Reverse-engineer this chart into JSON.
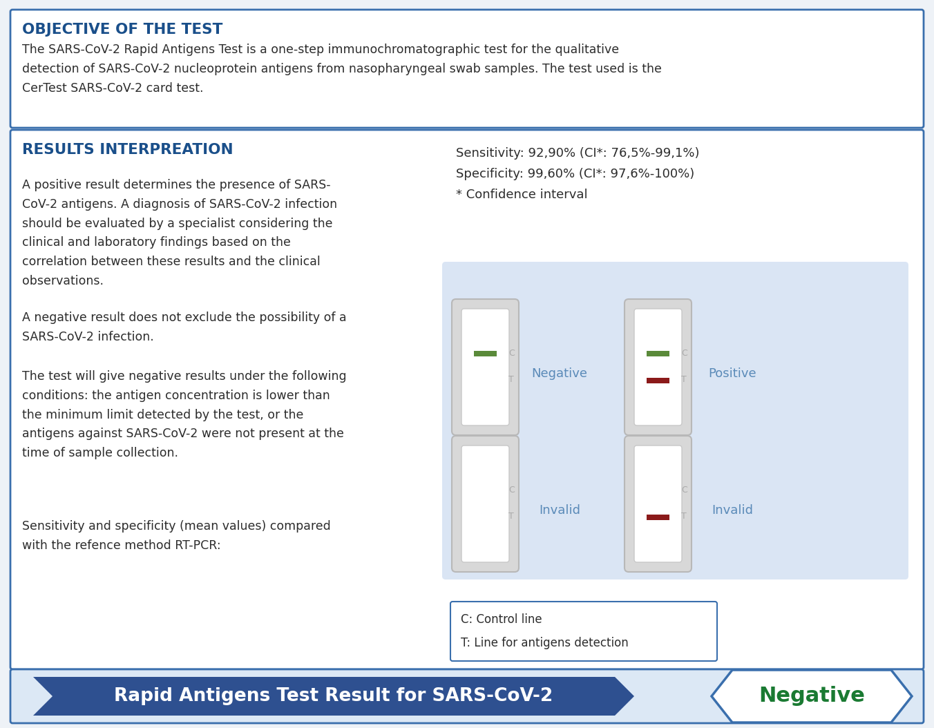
{
  "title_section1": "OBJECTIVE OF THE TEST",
  "body_section1_line1": "The SARS-CoV-2 Rapid Antigens Test is a one-step immunochromatographic test for the qualitative",
  "body_section1_line2": "detection of SARS-CoV-2 nucleoprotein antigens from nasopharyngeal swab samples. The test used is the",
  "body_section1_line3": "CerTest SARS-CoV-2 card test.",
  "title_section2": "RESULTS INTERPREATION",
  "p1": "A positive result determines the presence of SARS-\nCoV-2 antigens. A diagnosis of SARS-CoV-2 infection\nshould be evaluated by a specialist considering the\nclinical and laboratory findings based on the\ncorrelation between these results and the clinical\nobservations.",
  "p2": "A negative result does not exclude the possibility of a\nSARS-CoV-2 infection.",
  "p3": "The test will give negative results under the following\nconditions: the antigen concentration is lower than\nthe minimum limit detected by the test, or the\nantigens against SARS-CoV-2 were not present at the\ntime of sample collection.",
  "p4": "Sensitivity and specificity (mean values) compared\nwith the refence method RT-PCR:",
  "sensitivity_text": "Sensitivity: 92,90% (CI*: 76,5%-99,1%)",
  "specificity_text": "Specificity: 99,60% (CI*: 97,6%-100%)",
  "confidence_text": "* Confidence interval",
  "legend_c": "C: Control line",
  "legend_t": "T: Line for antigens detection",
  "bottom_label": "Rapid Antigens Test Result for SARS-CoV-2",
  "bottom_result": "Negative",
  "color_title": "#1a4f8a",
  "color_border": "#3a6fad",
  "color_text": "#2c2c2c",
  "color_arrow_bg": "#2e5090",
  "color_negative_text": "#1a7a32",
  "color_light_blue_bg": "#dae5f4",
  "color_green_line": "#5a8a3a",
  "color_red_line": "#8b1a1a",
  "color_ct_label": "#aaaaaa",
  "color_neg_pos_label": "#5a8ab8",
  "background_color": "#eef2f7",
  "white": "#ffffff",
  "strip_outer": "#d8d8d8",
  "strip_outer_edge": "#b8b8b8",
  "strip_inner_bg": "#f5f5f5"
}
